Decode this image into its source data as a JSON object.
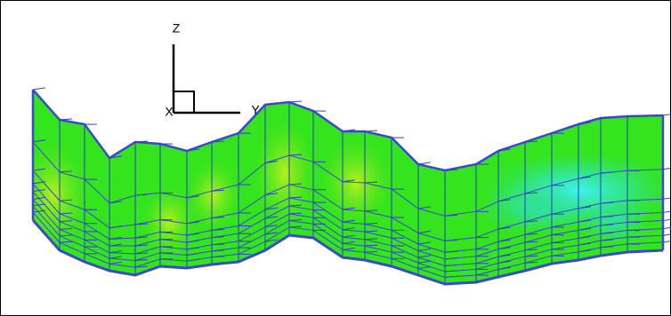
{
  "axes": {
    "z": "Z",
    "y": "Y",
    "x": "X"
  }
}
